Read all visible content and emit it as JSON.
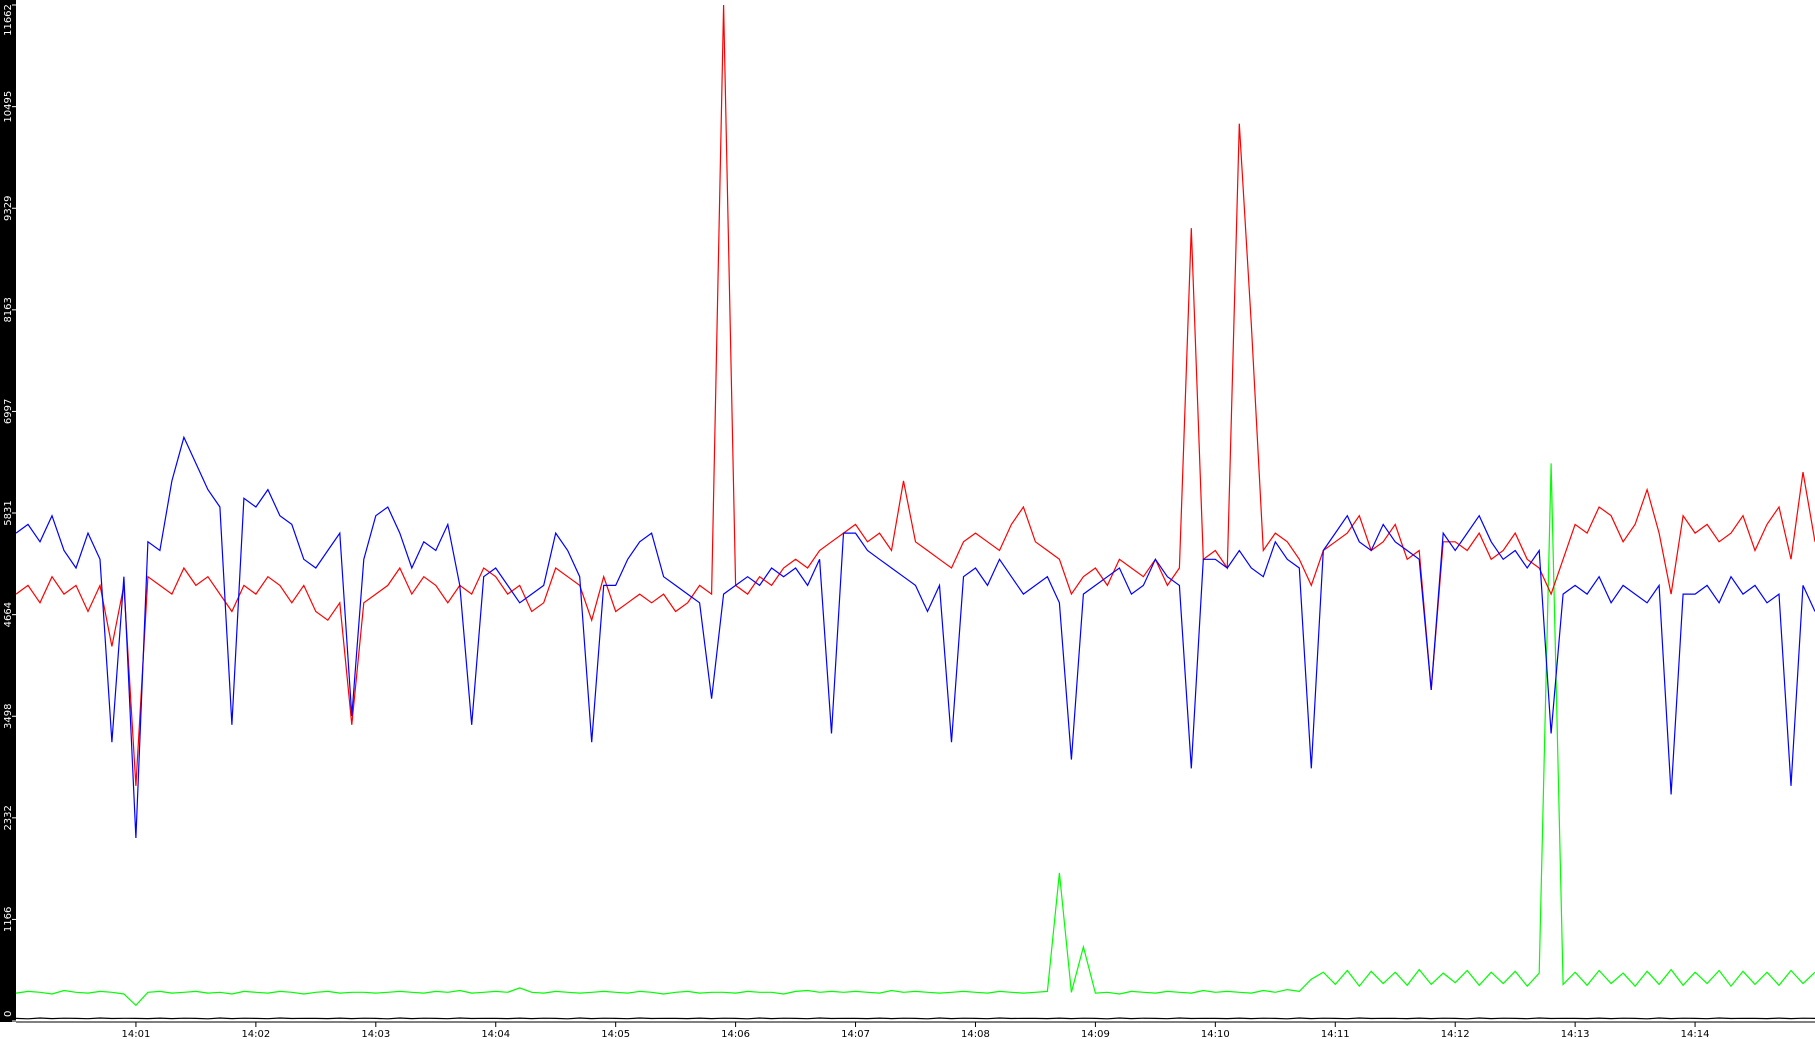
{
  "chart_data": {
    "type": "line",
    "xlim": [
      0,
      15
    ],
    "xticks": [
      {
        "value": 1,
        "label": "14:01"
      },
      {
        "value": 2,
        "label": "14:02"
      },
      {
        "value": 3,
        "label": "14:03"
      },
      {
        "value": 4,
        "label": "14:04"
      },
      {
        "value": 5,
        "label": "14:05"
      },
      {
        "value": 6,
        "label": "14:06"
      },
      {
        "value": 7,
        "label": "14:07"
      },
      {
        "value": 8,
        "label": "14:08"
      },
      {
        "value": 9,
        "label": "14:09"
      },
      {
        "value": 10,
        "label": "14:10"
      },
      {
        "value": 11,
        "label": "14:11"
      },
      {
        "value": 12,
        "label": "14:12"
      },
      {
        "value": 13,
        "label": "14:13"
      },
      {
        "value": 14,
        "label": "14:14"
      }
    ],
    "ylim": [
      0,
      11662
    ],
    "yticks": [
      0,
      1166,
      2332,
      3498,
      4664,
      5831,
      6997,
      8163,
      9329,
      10495,
      11662
    ],
    "x": [
      0,
      0.1,
      0.2,
      0.3,
      0.4,
      0.5,
      0.6,
      0.7,
      0.8,
      0.9,
      1,
      1.1,
      1.2,
      1.3,
      1.4,
      1.5,
      1.6,
      1.7,
      1.8,
      1.9,
      2,
      2.1,
      2.2,
      2.3,
      2.4,
      2.5,
      2.6,
      2.7,
      2.8,
      2.9,
      3,
      3.1,
      3.2,
      3.3,
      3.4,
      3.5,
      3.6,
      3.7,
      3.8,
      3.9,
      4,
      4.1,
      4.2,
      4.3,
      4.4,
      4.5,
      4.6,
      4.7,
      4.8,
      4.9,
      5,
      5.1,
      5.2,
      5.3,
      5.4,
      5.5,
      5.6,
      5.7,
      5.8,
      5.9,
      6,
      6.1,
      6.2,
      6.3,
      6.4,
      6.5,
      6.6,
      6.7,
      6.8,
      6.9,
      7,
      7.1,
      7.2,
      7.3,
      7.4,
      7.5,
      7.6,
      7.7,
      7.8,
      7.9,
      8,
      8.1,
      8.2,
      8.3,
      8.4,
      8.5,
      8.6,
      8.7,
      8.8,
      8.9,
      9,
      9.1,
      9.2,
      9.3,
      9.4,
      9.5,
      9.6,
      9.7,
      9.8,
      9.9,
      10,
      10.1,
      10.2,
      10.3,
      10.4,
      10.5,
      10.6,
      10.7,
      10.8,
      10.9,
      11,
      11.1,
      11.2,
      11.3,
      11.4,
      11.5,
      11.6,
      11.7,
      11.8,
      11.9,
      12,
      12.1,
      12.2,
      12.3,
      12.4,
      12.5,
      12.6,
      12.7,
      12.8,
      12.9,
      13,
      13.1,
      13.2,
      13.3,
      13.4,
      13.5,
      13.6,
      13.7,
      13.8,
      13.9,
      14,
      14.1,
      14.2,
      14.3,
      14.4,
      14.5,
      14.6,
      14.7,
      14.8,
      14.9,
      15
    ],
    "series": [
      {
        "color": "#000000",
        "values": [
          30,
          25,
          35,
          28,
          32,
          30,
          26,
          34,
          29,
          31,
          30,
          27,
          33,
          28,
          32,
          30,
          25,
          35,
          28,
          32,
          30,
          26,
          34,
          29,
          31,
          30,
          27,
          33,
          28,
          32,
          30,
          25,
          35,
          28,
          32,
          30,
          26,
          34,
          29,
          31,
          30,
          27,
          33,
          28,
          32,
          30,
          25,
          35,
          28,
          32,
          30,
          26,
          34,
          29,
          31,
          30,
          27,
          33,
          28,
          32,
          30,
          25,
          35,
          28,
          32,
          30,
          26,
          34,
          29,
          31,
          30,
          27,
          33,
          28,
          32,
          30,
          25,
          35,
          28,
          32,
          30,
          26,
          34,
          29,
          31,
          30,
          27,
          33,
          28,
          32,
          30,
          25,
          35,
          28,
          32,
          30,
          26,
          34,
          29,
          31,
          30,
          27,
          33,
          28,
          32,
          30,
          25,
          35,
          28,
          32,
          30,
          26,
          34,
          29,
          31,
          30,
          27,
          33,
          28,
          32,
          30,
          25,
          35,
          28,
          32,
          30,
          26,
          34,
          29,
          31,
          30,
          27,
          33,
          28,
          32,
          30,
          25,
          35,
          28,
          32,
          30,
          26,
          34,
          29,
          31,
          30,
          27,
          33,
          28,
          32,
          30
        ]
      },
      {
        "color": "#00ff00",
        "values": [
          320,
          340,
          330,
          310,
          350,
          330,
          320,
          340,
          330,
          310,
          180,
          330,
          340,
          320,
          330,
          340,
          320,
          330,
          310,
          340,
          330,
          320,
          340,
          330,
          310,
          330,
          340,
          320,
          330,
          330,
          320,
          330,
          340,
          330,
          320,
          340,
          330,
          350,
          320,
          330,
          340,
          330,
          380,
          330,
          320,
          340,
          330,
          320,
          330,
          340,
          330,
          320,
          340,
          330,
          310,
          330,
          340,
          320,
          330,
          330,
          320,
          340,
          330,
          330,
          310,
          340,
          350,
          330,
          340,
          330,
          340,
          330,
          320,
          350,
          330,
          340,
          330,
          320,
          330,
          340,
          330,
          320,
          340,
          330,
          320,
          330,
          340,
          1700,
          330,
          850,
          320,
          330,
          310,
          340,
          330,
          320,
          340,
          330,
          320,
          350,
          330,
          340,
          330,
          320,
          350,
          330,
          360,
          340,
          480,
          560,
          420,
          580,
          400,
          570,
          430,
          560,
          410,
          590,
          420,
          550,
          440,
          580,
          410,
          560,
          430,
          570,
          400,
          550,
          6400,
          420,
          560,
          410,
          580,
          430,
          550,
          400,
          570,
          420,
          590,
          410,
          560,
          430,
          580,
          400,
          570,
          420,
          560,
          410,
          580,
          430,
          560
        ]
      },
      {
        "color": "#ff0000",
        "values": [
          4900,
          5000,
          4800,
          5100,
          4900,
          5000,
          4700,
          5000,
          4300,
          5000,
          2700,
          5100,
          5000,
          4900,
          5200,
          5000,
          5100,
          4900,
          4700,
          5000,
          4900,
          5100,
          5000,
          4800,
          5000,
          4700,
          4600,
          4800,
          3400,
          4800,
          4900,
          5000,
          5200,
          4900,
          5100,
          5000,
          4800,
          5000,
          4900,
          5200,
          5100,
          4900,
          5000,
          4700,
          4800,
          5200,
          5100,
          5000,
          4600,
          5100,
          4700,
          4800,
          4900,
          4800,
          4900,
          4700,
          4800,
          5000,
          4900,
          11662,
          5000,
          4900,
          5100,
          5000,
          5200,
          5300,
          5200,
          5400,
          5500,
          5600,
          5700,
          5500,
          5600,
          5400,
          6200,
          5500,
          5400,
          5300,
          5200,
          5500,
          5600,
          5500,
          5400,
          5700,
          5900,
          5500,
          5400,
          5300,
          4900,
          5100,
          5200,
          5000,
          5300,
          5200,
          5100,
          5300,
          5000,
          5200,
          9100,
          5300,
          5400,
          5200,
          10300,
          8000,
          5400,
          5600,
          5500,
          5300,
          5000,
          5400,
          5500,
          5600,
          5800,
          5400,
          5500,
          5700,
          5300,
          5400,
          3800,
          5500,
          5500,
          5400,
          5600,
          5300,
          5400,
          5600,
          5300,
          5200,
          4900,
          5300,
          5700,
          5600,
          5900,
          5800,
          5500,
          5700,
          6100,
          5600,
          4900,
          5800,
          5600,
          5700,
          5500,
          5600,
          5800,
          5400,
          5700,
          5900,
          5300,
          6300,
          5500
        ]
      },
      {
        "color": "#0000ff",
        "values": [
          5600,
          5700,
          5500,
          5800,
          5400,
          5200,
          5600,
          5300,
          3200,
          5100,
          2100,
          5500,
          5400,
          6200,
          6700,
          6400,
          6100,
          5900,
          3400,
          6000,
          5900,
          6100,
          5800,
          5700,
          5300,
          5200,
          5400,
          5600,
          3500,
          5300,
          5800,
          5900,
          5600,
          5200,
          5500,
          5400,
          5700,
          5000,
          3400,
          5100,
          5200,
          5000,
          4800,
          4900,
          5000,
          5600,
          5400,
          5100,
          3200,
          5000,
          5000,
          5300,
          5500,
          5600,
          5100,
          5000,
          4900,
          4800,
          3700,
          4900,
          5000,
          5100,
          5000,
          5200,
          5100,
          5200,
          5000,
          5300,
          3300,
          5600,
          5600,
          5400,
          5300,
          5200,
          5100,
          5000,
          4700,
          5000,
          3200,
          5100,
          5200,
          5000,
          5300,
          5100,
          4900,
          5000,
          5100,
          4800,
          3000,
          4900,
          5000,
          5100,
          5200,
          4900,
          5000,
          5300,
          5100,
          5000,
          2900,
          5300,
          5300,
          5200,
          5400,
          5200,
          5100,
          5500,
          5300,
          5200,
          2900,
          5400,
          5600,
          5800,
          5500,
          5400,
          5700,
          5500,
          5400,
          5300,
          3800,
          5600,
          5400,
          5600,
          5800,
          5500,
          5300,
          5400,
          5200,
          5400,
          3300,
          4900,
          5000,
          4900,
          5100,
          4800,
          5000,
          4900,
          4800,
          5000,
          2600,
          4900,
          4900,
          5000,
          4800,
          5100,
          4900,
          5000,
          4800,
          4900,
          2700,
          5000,
          4700
        ]
      }
    ]
  }
}
